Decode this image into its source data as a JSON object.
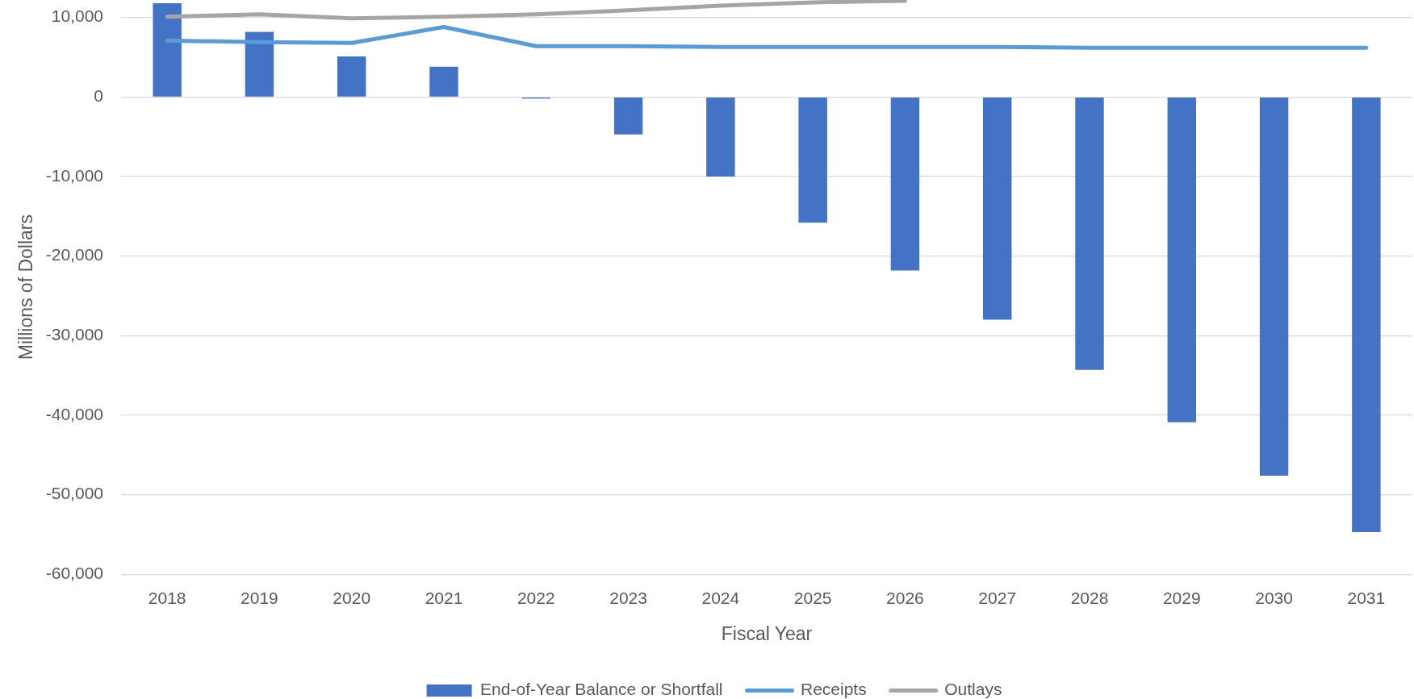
{
  "chart_data": {
    "type": "bar",
    "xlabel": "Fiscal Year",
    "ylabel": "Millions of Dollars",
    "categories": [
      "2018",
      "2019",
      "2020",
      "2021",
      "2022",
      "2023",
      "2024",
      "2025",
      "2026",
      "2027",
      "2028",
      "2029",
      "2030",
      "2031"
    ],
    "series": [
      {
        "name": "End-of-Year Balance or Shortfall",
        "color": "#4472c4",
        "values": [
          11800,
          8200,
          5100,
          3800,
          -200,
          -4700,
          -10000,
          -15800,
          -21800,
          -28000,
          -34300,
          -40900,
          -47600,
          -54700
        ]
      },
      {
        "name": "Receipts",
        "type": "line",
        "color": "#5b9bd5",
        "values": [
          7100,
          6900,
          6800,
          8800,
          6400,
          6400,
          6300,
          6300,
          6300,
          6300,
          6200,
          6200,
          6200,
          6200
        ]
      },
      {
        "name": "Outlays",
        "type": "line",
        "color": "#a5a5a5",
        "values": [
          10100,
          10400,
          9900,
          10100,
          10400,
          10900,
          11500,
          11900,
          12100,
          null,
          null,
          null,
          null,
          null
        ]
      }
    ],
    "ylim": [
      -60000,
      12200
    ],
    "yticks": [
      {
        "value": -60000,
        "label": "-60,000"
      },
      {
        "value": -50000,
        "label": "-50,000"
      },
      {
        "value": -40000,
        "label": "-40,000"
      },
      {
        "value": -30000,
        "label": "-30,000"
      },
      {
        "value": -20000,
        "label": "-20,000"
      },
      {
        "value": -10000,
        "label": "-10,000"
      },
      0,
      {
        "value": 10000,
        "label": "10,000"
      }
    ],
    "grid": "y",
    "legend": "bottom"
  }
}
